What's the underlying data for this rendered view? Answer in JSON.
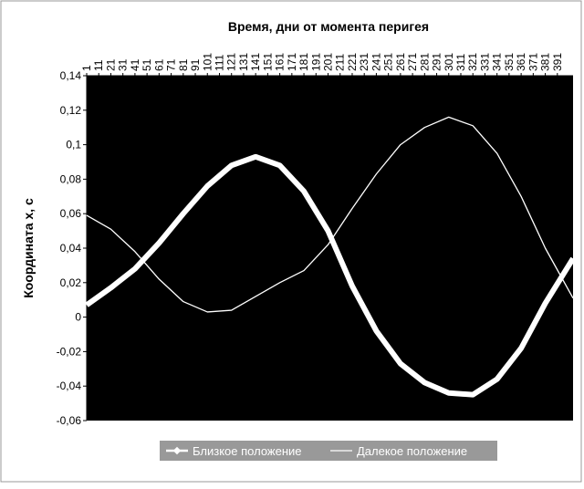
{
  "chart_data": {
    "type": "line",
    "title": "Время, дни от момента перигея",
    "y_label": "Координата x, с",
    "x": [
      1,
      21,
      41,
      61,
      81,
      101,
      121,
      141,
      161,
      181,
      201,
      221,
      241,
      261,
      281,
      301,
      321,
      341,
      361,
      381,
      404
    ],
    "xlim": [
      1,
      404
    ],
    "xticks": [
      1,
      11,
      21,
      31,
      41,
      51,
      61,
      71,
      81,
      91,
      101,
      111,
      121,
      131,
      141,
      151,
      161,
      171,
      181,
      191,
      201,
      211,
      221,
      231,
      241,
      251,
      261,
      271,
      281,
      291,
      301,
      311,
      321,
      331,
      341,
      351,
      361,
      371,
      381,
      391
    ],
    "ylim": [
      -0.06,
      0.14
    ],
    "yticks": [
      {
        "value": -0.06,
        "label": "-0,06"
      },
      {
        "value": -0.04,
        "label": "-0,04"
      },
      {
        "value": -0.02,
        "label": "-0,02"
      },
      0,
      {
        "value": 0.02,
        "label": "0,02"
      },
      {
        "value": 0.04,
        "label": "0,04"
      },
      {
        "value": 0.06,
        "label": "0,06"
      },
      {
        "value": 0.08,
        "label": "0,08"
      },
      {
        "value": 0.1,
        "label": "0,1"
      },
      {
        "value": 0.12,
        "label": "0,12"
      },
      {
        "value": 0.14,
        "label": "0,14"
      }
    ],
    "series": [
      {
        "name": "Близкое положение",
        "color": "#ffffff",
        "values": [
          0.007,
          0.017,
          0.028,
          0.043,
          0.06,
          0.076,
          0.088,
          0.093,
          0.088,
          0.073,
          0.05,
          0.018,
          -0.008,
          -0.027,
          -0.038,
          -0.044,
          -0.045,
          -0.036,
          -0.018,
          0.008,
          0.034
        ]
      },
      {
        "name": "Далекое положение",
        "color": "#ffffff",
        "values": [
          0.059,
          0.051,
          0.038,
          0.022,
          0.009,
          0.003,
          0.004,
          0.012,
          0.02,
          0.027,
          0.042,
          0.063,
          0.083,
          0.1,
          0.11,
          0.116,
          0.111,
          0.095,
          0.07,
          0.04,
          0.011
        ]
      }
    ]
  }
}
